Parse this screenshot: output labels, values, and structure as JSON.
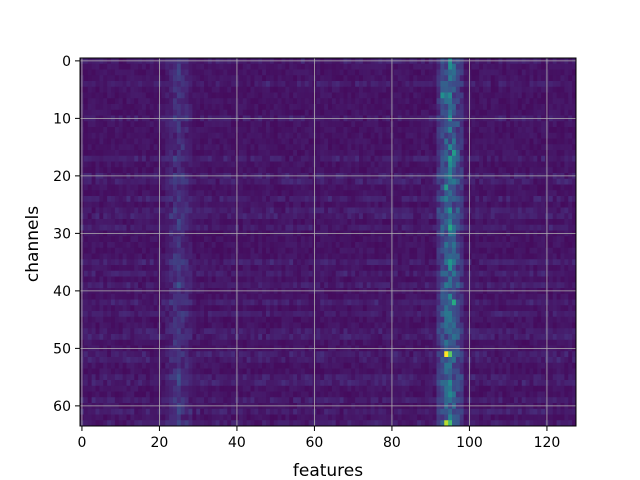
{
  "chart_data": {
    "type": "heatmap",
    "title": "",
    "xlabel": "features",
    "ylabel": "channels",
    "n_cols": 128,
    "n_rows": 64,
    "xlim": [
      -0.5,
      127.5
    ],
    "ylim": [
      63.5,
      -0.5
    ],
    "x_ticks": [
      0,
      20,
      40,
      60,
      80,
      100,
      120
    ],
    "y_ticks": [
      0,
      10,
      20,
      30,
      40,
      50,
      60
    ],
    "x_tick_labels": [
      "0",
      "20",
      "40",
      "60",
      "80",
      "100",
      "120"
    ],
    "y_tick_labels": [
      "0",
      "10",
      "20",
      "30",
      "40",
      "50",
      "60"
    ],
    "grid": true,
    "colormap": "viridis",
    "value_range": [
      0,
      1
    ],
    "baseline_value": 0.03,
    "hot_band": {
      "center_col": 95,
      "half_width": 3.5,
      "base_value": 0.38
    },
    "secondary_band": {
      "center_col": 25,
      "half_width": 3,
      "base_value": 0.12
    },
    "hotspots": [
      {
        "row": 51,
        "col": 94,
        "value": 1.0
      },
      {
        "row": 51,
        "col": 95,
        "value": 0.75
      },
      {
        "row": 63,
        "col": 94,
        "value": 0.9
      },
      {
        "row": 63,
        "col": 95,
        "value": 0.7
      },
      {
        "row": 42,
        "col": 96,
        "value": 0.62
      },
      {
        "row": 29,
        "col": 95,
        "value": 0.6
      },
      {
        "row": 16,
        "col": 96,
        "value": 0.55
      },
      {
        "row": 6,
        "col": 93,
        "value": 0.5
      },
      {
        "row": 22,
        "col": 94,
        "value": 0.55
      },
      {
        "row": 36,
        "col": 95,
        "value": 0.5
      }
    ]
  }
}
